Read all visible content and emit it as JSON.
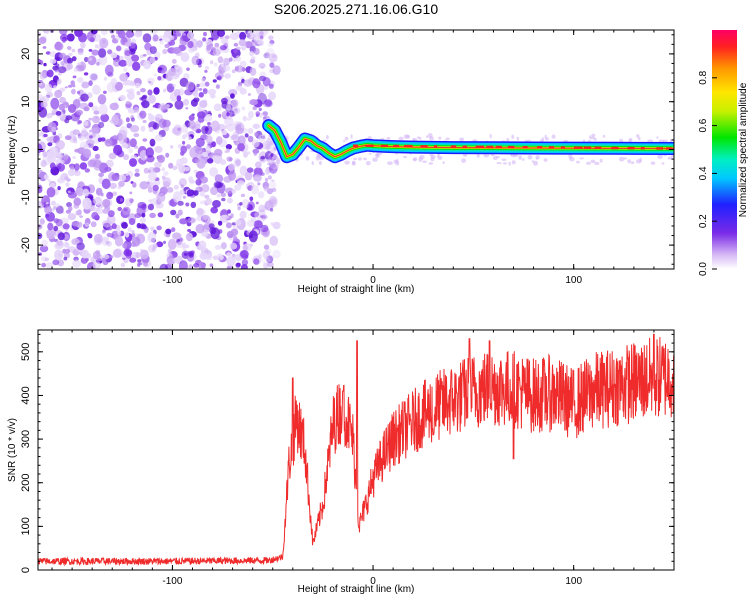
{
  "title": "S206.2025.271.16.06.G10",
  "colors": {
    "snr_line": "#ef2b2b",
    "ridge": "#e8402a",
    "noise": "#7a2be8",
    "frame": "#000000"
  },
  "chart_data": [
    {
      "type": "heatmap",
      "name": "spectrogram",
      "xlabel": "Height of straight line (km)",
      "ylabel": "Frequency (Hz)",
      "xlim": [
        -167,
        150
      ],
      "ylim": [
        -25,
        25
      ],
      "xticks": [
        -100,
        0,
        100
      ],
      "xtick_labels": [
        "-100",
        "0",
        "100"
      ],
      "yticks": [
        -20,
        -10,
        0,
        10,
        20
      ],
      "ytick_labels": [
        "-20",
        "-10",
        "0",
        "10",
        "20"
      ],
      "noise_region_x": [
        -167,
        -52
      ],
      "ridge": {
        "x": [
          -52,
          -49,
          -46,
          -43,
          -40,
          -37,
          -34,
          -31,
          -28,
          -25,
          -22,
          -19,
          -16,
          -13,
          -10,
          -6,
          -3,
          0,
          5,
          10,
          20,
          40,
          60,
          90,
          120,
          150
        ],
        "freq_hz": [
          5.0,
          4.0,
          1.5,
          -1.5,
          -1.0,
          0.5,
          2.2,
          1.8,
          0.8,
          0.2,
          -0.8,
          -1.5,
          -1.0,
          -0.3,
          0.3,
          0.7,
          0.9,
          0.8,
          0.7,
          0.6,
          0.5,
          0.4,
          0.35,
          0.3,
          0.25,
          0.2
        ]
      }
    },
    {
      "type": "colorbar",
      "name": "amplitude-scale",
      "label": "Normalized spectral amplitude",
      "range": [
        0.0,
        1.0
      ],
      "ticks": [
        0.0,
        0.2,
        0.4,
        0.6,
        0.8
      ],
      "tick_labels": [
        "0.0",
        "0.2",
        "0.4",
        "0.6",
        "0.8"
      ]
    },
    {
      "type": "line",
      "name": "snr",
      "xlabel": "Height of straight line (km)",
      "ylabel": "SNR (10 * v/v)",
      "xlim": [
        -167,
        150
      ],
      "ylim": [
        0,
        550
      ],
      "xticks": [
        -100,
        0,
        100
      ],
      "xtick_labels": [
        "-100",
        "0",
        "100"
      ],
      "yticks": [
        0,
        100,
        200,
        300,
        400,
        500
      ],
      "ytick_labels": [
        "0",
        "100",
        "200",
        "300",
        "400",
        "500"
      ],
      "series": [
        {
          "name": "SNR",
          "x": [
            -167,
            -100,
            -52,
            -45,
            -42,
            -38,
            -34,
            -30,
            -25,
            -20,
            -15,
            -10,
            -7,
            -3,
            0,
            5,
            10,
            20,
            30,
            40,
            50,
            60,
            70,
            80,
            90,
            100,
            110,
            120,
            130,
            140,
            150
          ],
          "y": [
            20,
            20,
            22,
            30,
            240,
            350,
            280,
            60,
            150,
            330,
            380,
            300,
            100,
            160,
            210,
            260,
            300,
            340,
            370,
            390,
            410,
            420,
            415,
            400,
            405,
            380,
            410,
            420,
            430,
            440,
            445
          ],
          "spikes": [
            [
              -40,
              440
            ],
            [
              -8,
              525
            ],
            [
              -15,
              410
            ],
            [
              48,
              530
            ],
            [
              58,
              525
            ],
            [
              140,
              540
            ],
            [
              30,
              310
            ],
            [
              70,
              255
            ]
          ]
        }
      ]
    }
  ]
}
